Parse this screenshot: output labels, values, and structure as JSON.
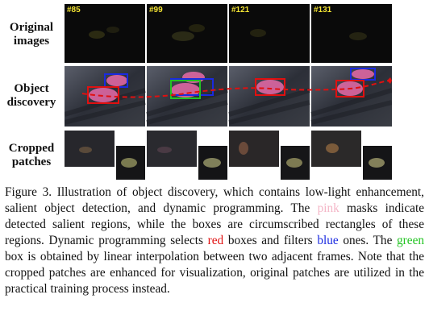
{
  "row_labels": {
    "original": "Original\nimages",
    "discovery": "Object\ndiscovery",
    "patches": "Cropped\npatches"
  },
  "frames": [
    "#85",
    "#99",
    "#121",
    "#131"
  ],
  "colors": {
    "pink_mask": "#e86aa8",
    "red_box": "#e01010",
    "blue_box": "#1a2ae0",
    "green_box": "#22c422",
    "frame_label": "#f5e533"
  },
  "caption": {
    "part1": "Figure 3. Illustration of object discovery, which contains low-light enhancement, salient object detection, and dynamic programming. The ",
    "pink": "pink",
    "part2": " masks indicate detected salient regions, while the boxes are circumscribed rectangles of these regions. Dynamic programming selects ",
    "red": "red",
    "part3": " boxes and filters ",
    "blue": "blue",
    "part4": " ones. The ",
    "green": "green",
    "part5": " box is obtained by linear interpolation between two adjacent frames. Note that the cropped patches are enhanced for visualization, original patches are utilized in the practical training process instead."
  }
}
